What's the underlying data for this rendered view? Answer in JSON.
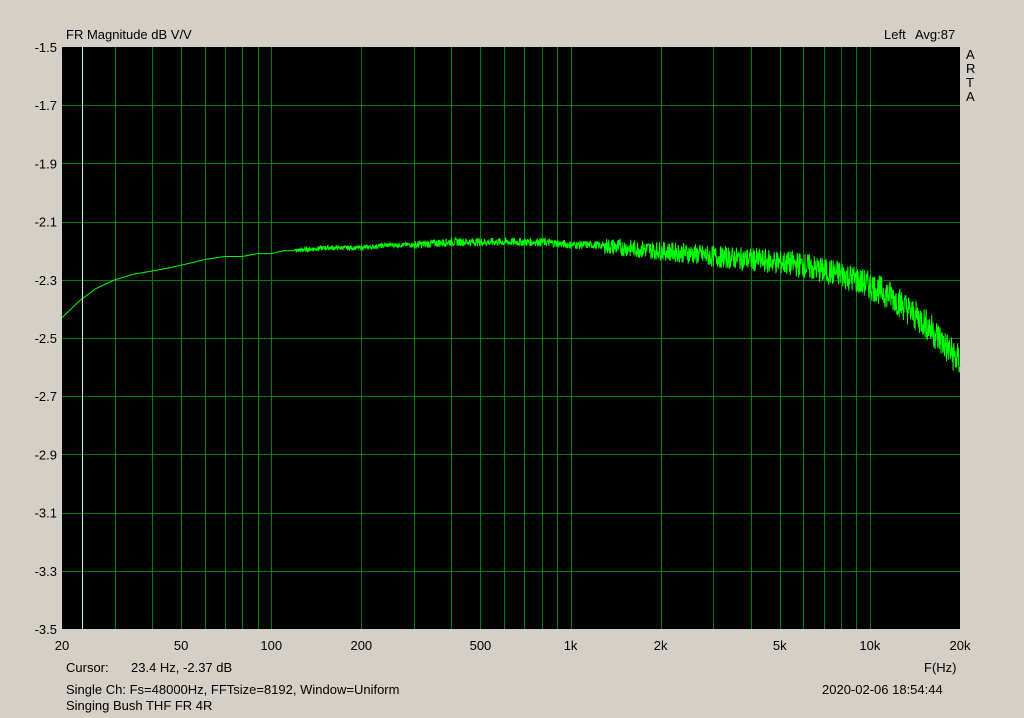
{
  "header": {
    "title": "FR Magnitude dB V/V",
    "channel": "Left",
    "avg": "Avg:87",
    "brand": [
      "A",
      "R",
      "T",
      "A"
    ]
  },
  "footer": {
    "cursor_label": "Cursor:",
    "cursor_value": "23.4 Hz, -2.37 dB",
    "x_unit": "F(Hz)",
    "settings": "Single Ch: Fs=48000Hz, FFTsize=8192, Window=Uniform",
    "timestamp": "2020-02-06  18:54:44",
    "caption": "Singing Bush THF FR 4R"
  },
  "colors": {
    "plot_background": "#000000",
    "grid": "#008000",
    "trace": "#00ff00",
    "cursor_line": "#c0ffc0",
    "window_background": "#d4d0c8"
  },
  "chart_data": {
    "type": "line",
    "x_scale": "log",
    "xlim": [
      20,
      20000
    ],
    "ylim": [
      -3.5,
      -1.5
    ],
    "x_ticks": [
      20,
      50,
      100,
      200,
      500,
      1000,
      2000,
      5000,
      10000,
      20000
    ],
    "x_tick_labels": [
      "20",
      "50",
      "100",
      "200",
      "500",
      "1k",
      "2k",
      "5k",
      "10k",
      "20k"
    ],
    "y_ticks": [
      -1.5,
      -1.7,
      -1.9,
      -2.1,
      -2.3,
      -2.5,
      -2.7,
      -2.9,
      -3.1,
      -3.3,
      -3.5
    ],
    "y_tick_labels": [
      "-1.5",
      "-1.7",
      "-1.9",
      "-2.1",
      "-2.3",
      "-2.5",
      "-2.7",
      "-2.9",
      "-3.1",
      "-3.3",
      "-3.5"
    ],
    "grid": true,
    "cursor_x": 23.4,
    "series": [
      {
        "x": [
          20,
          23,
          26,
          30,
          35,
          40,
          45,
          50,
          55,
          60,
          70,
          80,
          90,
          100,
          110,
          120,
          150,
          200,
          250,
          300,
          400,
          500,
          600,
          800,
          1000,
          1200,
          1500,
          2000,
          2500,
          3000,
          4000,
          5000,
          6000,
          7000,
          8000,
          9000,
          10000,
          11000,
          12000,
          13000,
          14000,
          15000,
          16000,
          17000,
          18000,
          19000,
          20000
        ],
        "y": [
          -2.43,
          -2.37,
          -2.33,
          -2.3,
          -2.28,
          -2.27,
          -2.26,
          -2.25,
          -2.24,
          -2.23,
          -2.22,
          -2.22,
          -2.21,
          -2.21,
          -2.2,
          -2.2,
          -2.19,
          -2.19,
          -2.18,
          -2.18,
          -2.17,
          -2.17,
          -2.17,
          -2.17,
          -2.18,
          -2.18,
          -2.19,
          -2.2,
          -2.21,
          -2.22,
          -2.23,
          -2.24,
          -2.25,
          -2.27,
          -2.28,
          -2.3,
          -2.32,
          -2.34,
          -2.36,
          -2.39,
          -2.42,
          -2.44,
          -2.47,
          -2.5,
          -2.53,
          -2.56,
          -2.58
        ]
      }
    ]
  }
}
